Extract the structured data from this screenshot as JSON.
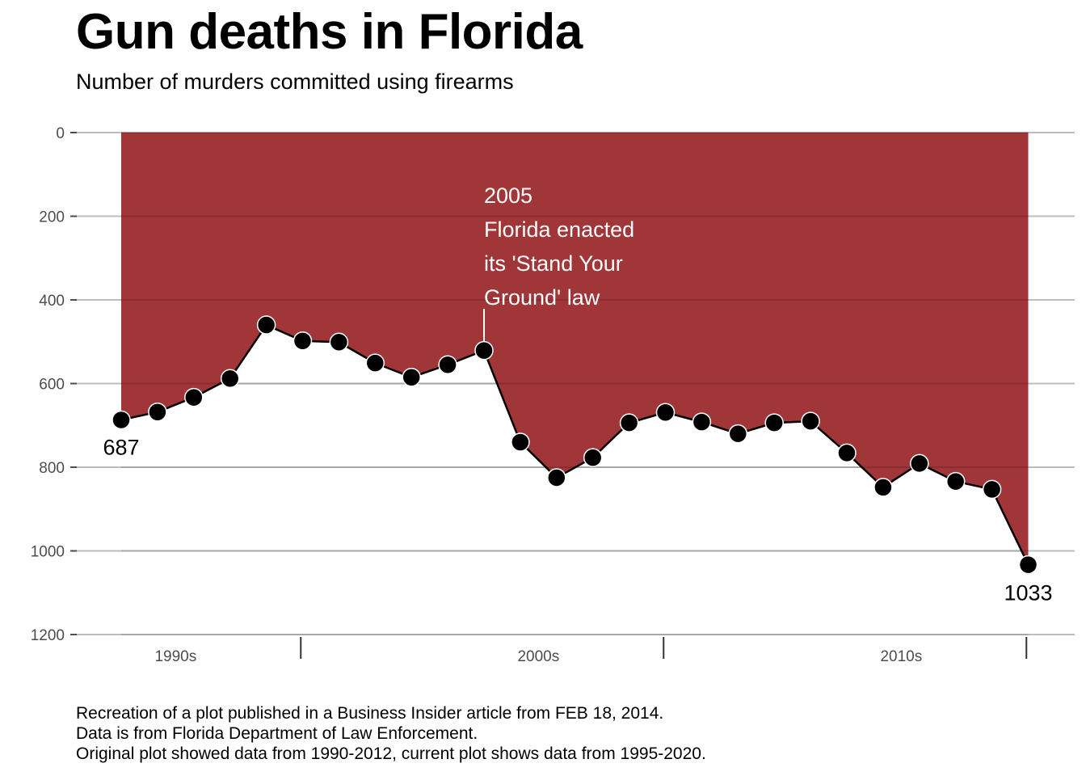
{
  "header": {
    "title": "Gun deaths in Florida",
    "subtitle": "Number of murders committed using firearms"
  },
  "caption": {
    "lines": [
      "Recreation of a plot published in a Business Insider article from FEB 18, 2014.",
      "Data is from Florida Department of Law Enforcement.",
      "Original plot showed data from 1990-2012, current plot shows data from 1995-2020."
    ]
  },
  "colors": {
    "fill": "#9e3033",
    "line": "#000000",
    "point": "#000000",
    "point_outline": "#ffffff",
    "grid": "#bdbdbd",
    "axis_text": "#4d4d4d"
  },
  "chart_data": {
    "type": "area",
    "title": "Gun deaths in Florida",
    "subtitle": "Number of murders committed using firearms",
    "xlabel": "",
    "ylabel": "",
    "x": [
      1995,
      1996,
      1997,
      1998,
      1999,
      2000,
      2001,
      2002,
      2003,
      2004,
      2005,
      2006,
      2007,
      2008,
      2009,
      2010,
      2011,
      2012,
      2013,
      2014,
      2015,
      2016,
      2017,
      2018,
      2019,
      2020
    ],
    "values": [
      687,
      668,
      633,
      588,
      460,
      498,
      501,
      551,
      585,
      555,
      521,
      740,
      825,
      777,
      694,
      669,
      692,
      720,
      694,
      690,
      766,
      848,
      791,
      834,
      853,
      1033
    ],
    "ylim": [
      0,
      1200
    ],
    "y_reversed": true,
    "y_ticks": [
      "0",
      "200",
      "400",
      "600",
      "800",
      "1000",
      "1200"
    ],
    "x_tick_labels": [
      "1990s",
      "2000s",
      "2010s"
    ],
    "grid": "horizontal",
    "annotation": {
      "x": 2005,
      "lines": [
        "2005",
        "Florida enacted",
        "its 'Stand Your",
        "Ground' law"
      ]
    },
    "endpoint_labels": [
      "687",
      "1033"
    ]
  }
}
